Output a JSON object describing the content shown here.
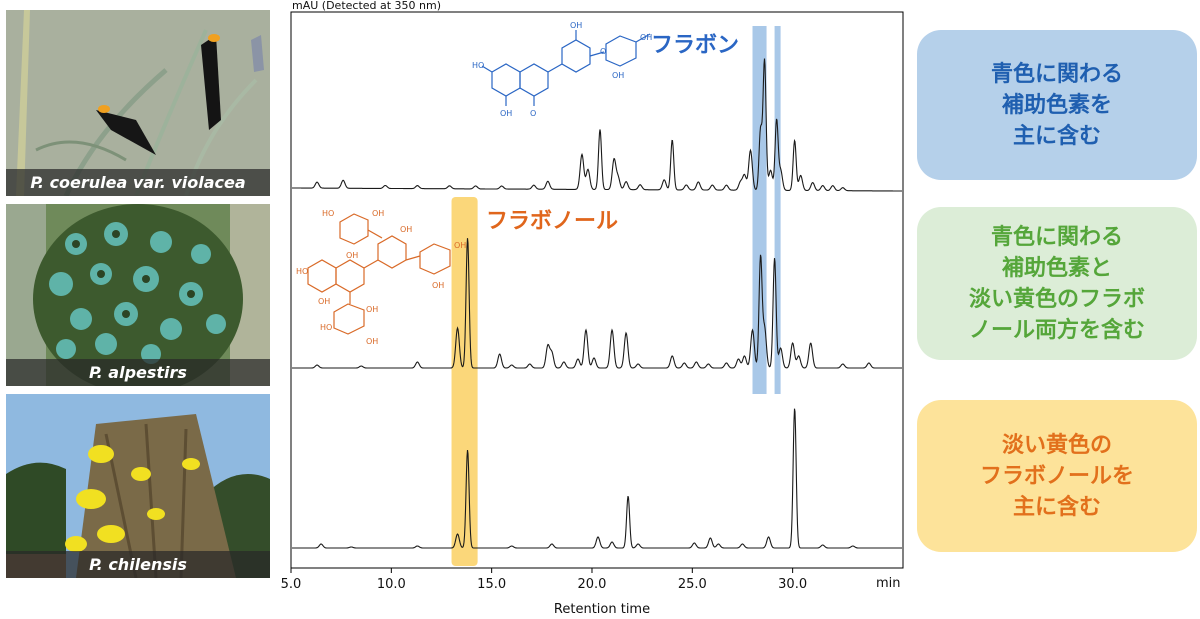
{
  "photos": [
    {
      "caption": "P. coerulea var. violacea",
      "scene": "blue-black flowers on grey-green stems"
    },
    {
      "caption": "P. alpestirs",
      "scene": "dense spike of teal-blue flowers"
    },
    {
      "caption": "P. chilensis",
      "scene": "yellow flower spike against blue sky"
    }
  ],
  "colors": {
    "blue_accent": "#2a66c4",
    "orange_accent": "#e0661c",
    "green_accent": "#55a63a",
    "blue_band": "#a9c8e8",
    "yellow_band": "#fbd77a",
    "trace": "#1a1a1a"
  },
  "chart_data": {
    "type": "line",
    "title": "mAU (Detected at 350 nm)",
    "xlabel": "Retention time",
    "x_unit_label": "min",
    "xlim": [
      5.0,
      35.5
    ],
    "x_ticks": [
      "5.0",
      "10.0",
      "15.0",
      "20.0",
      "25.0",
      "30.0"
    ],
    "x_tick_values": [
      5,
      10,
      15,
      20,
      25,
      30
    ],
    "grid": false,
    "annotations": {
      "flavone_label": "フラボン",
      "flavonol_label": "フラボノール",
      "flavone_bands_min": [
        [
          28.0,
          28.7
        ],
        [
          29.1,
          29.4
        ]
      ],
      "flavonol_band_min": [
        13.0,
        14.3
      ]
    },
    "series": [
      {
        "peaks": [
          [
            6.3,
            6
          ],
          [
            7.6,
            8
          ],
          [
            9.7,
            3
          ],
          [
            11.3,
            3
          ],
          [
            12.9,
            3
          ],
          [
            14.2,
            3
          ],
          [
            15.5,
            3
          ],
          [
            17.1,
            4
          ],
          [
            17.8,
            8
          ],
          [
            19.5,
            35
          ],
          [
            19.8,
            20
          ],
          [
            20.4,
            60
          ],
          [
            21.1,
            30
          ],
          [
            21.3,
            12
          ],
          [
            21.7,
            8
          ],
          [
            22.4,
            5
          ],
          [
            23.6,
            10
          ],
          [
            24.0,
            50
          ],
          [
            24.7,
            5
          ],
          [
            25.3,
            8
          ],
          [
            26.0,
            5
          ],
          [
            26.7,
            5
          ],
          [
            27.4,
            8
          ],
          [
            27.6,
            15
          ],
          [
            27.9,
            40
          ],
          [
            28.4,
            60
          ],
          [
            28.6,
            130
          ],
          [
            28.9,
            20
          ],
          [
            29.2,
            70
          ],
          [
            29.4,
            20
          ],
          [
            30.1,
            50
          ],
          [
            30.4,
            15
          ],
          [
            31.0,
            8
          ],
          [
            31.5,
            5
          ],
          [
            32.0,
            5
          ],
          [
            32.5,
            3
          ]
        ]
      },
      {
        "peaks": [
          [
            6.3,
            3
          ],
          [
            8.5,
            2
          ],
          [
            11.3,
            6
          ],
          [
            13.3,
            40
          ],
          [
            13.8,
            130
          ],
          [
            15.4,
            14
          ],
          [
            16.0,
            3
          ],
          [
            16.9,
            4
          ],
          [
            17.8,
            22
          ],
          [
            18.0,
            15
          ],
          [
            18.6,
            6
          ],
          [
            19.3,
            9
          ],
          [
            19.7,
            38
          ],
          [
            20.1,
            10
          ],
          [
            21.0,
            38
          ],
          [
            21.7,
            35
          ],
          [
            22.3,
            4
          ],
          [
            24.0,
            12
          ],
          [
            24.6,
            5
          ],
          [
            25.2,
            6
          ],
          [
            25.8,
            4
          ],
          [
            26.7,
            5
          ],
          [
            27.3,
            9
          ],
          [
            27.6,
            12
          ],
          [
            28.0,
            38
          ],
          [
            28.4,
            110
          ],
          [
            28.6,
            40
          ],
          [
            29.1,
            110
          ],
          [
            29.4,
            20
          ],
          [
            30.0,
            25
          ],
          [
            30.3,
            12
          ],
          [
            30.9,
            25
          ],
          [
            32.5,
            4
          ],
          [
            33.8,
            5
          ]
        ]
      },
      {
        "peaks": [
          [
            6.5,
            4
          ],
          [
            8.0,
            1
          ],
          [
            11.3,
            2
          ],
          [
            13.3,
            14
          ],
          [
            13.8,
            98
          ],
          [
            16.0,
            2
          ],
          [
            18.0,
            4
          ],
          [
            20.3,
            11
          ],
          [
            21.0,
            6
          ],
          [
            21.8,
            52
          ],
          [
            22.3,
            4
          ],
          [
            25.1,
            5
          ],
          [
            25.9,
            10
          ],
          [
            26.3,
            4
          ],
          [
            27.5,
            4
          ],
          [
            28.8,
            11
          ],
          [
            30.1,
            140
          ],
          [
            31.5,
            3
          ],
          [
            33.0,
            2
          ]
        ]
      }
    ]
  },
  "cards": {
    "blue": "青色に関わる\n補助色素を\n主に含む",
    "green": "青色に関わる\n補助色素と\n淡い黄色のフラボ\nノール両方を含む",
    "yellow": "淡い黄色の\nフラボノールを\n主に含む"
  }
}
